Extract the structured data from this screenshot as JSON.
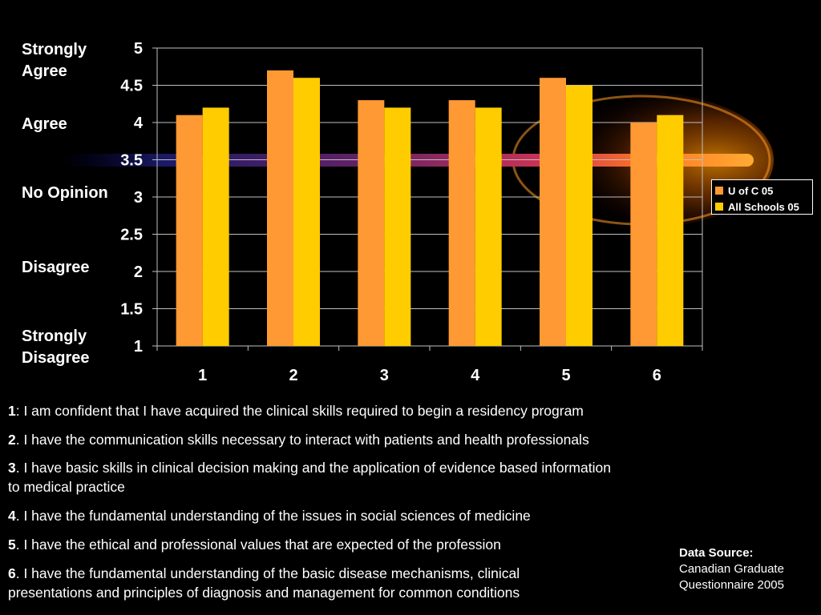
{
  "chart_data": {
    "type": "bar",
    "categories": [
      "1",
      "2",
      "3",
      "4",
      "5",
      "6"
    ],
    "series": [
      {
        "name": "U of C 05",
        "values": [
          4.1,
          4.7,
          4.3,
          4.3,
          4.6,
          4.0
        ],
        "color": "#FF9933"
      },
      {
        "name": "All Schools 05",
        "values": [
          4.2,
          4.6,
          4.2,
          4.2,
          4.5,
          4.1
        ],
        "color": "#FFCC00"
      }
    ],
    "ylim": [
      1,
      5
    ],
    "yticks": [
      "1",
      "1.5",
      "2",
      "2.5",
      "3",
      "3.5",
      "4",
      "4.5",
      "5"
    ],
    "grid": true,
    "legend_position": "right"
  },
  "scale_labels": {
    "strongly_agree": "Strongly Agree",
    "agree": "Agree",
    "no_opinion": "No Opinion",
    "disagree": "Disagree",
    "strongly_disagree": "Strongly Disagree"
  },
  "notes": [
    {
      "num": "1",
      "text": ": I am confident that I have acquired the clinical skills required to begin a residency program"
    },
    {
      "num": "2",
      "text": ". I have the communication skills necessary to interact with patients and health professionals"
    },
    {
      "num": "3",
      "text": ". I have basic skills in clinical decision making and the application of evidence based information to medical practice"
    },
    {
      "num": "4",
      "text": ". I have the fundamental understanding of the issues in social sciences of medicine"
    },
    {
      "num": "5",
      "text": ". I have the ethical and professional values that are expected of the profession"
    },
    {
      "num": "6",
      "text": ". I have the fundamental understanding of the basic disease mechanisms, clinical presentations and principles of diagnosis and management for common conditions"
    }
  ],
  "source": {
    "title": "Data Source:",
    "line1": "Canadian Graduate",
    "line2": "Questionnaire 2005"
  }
}
